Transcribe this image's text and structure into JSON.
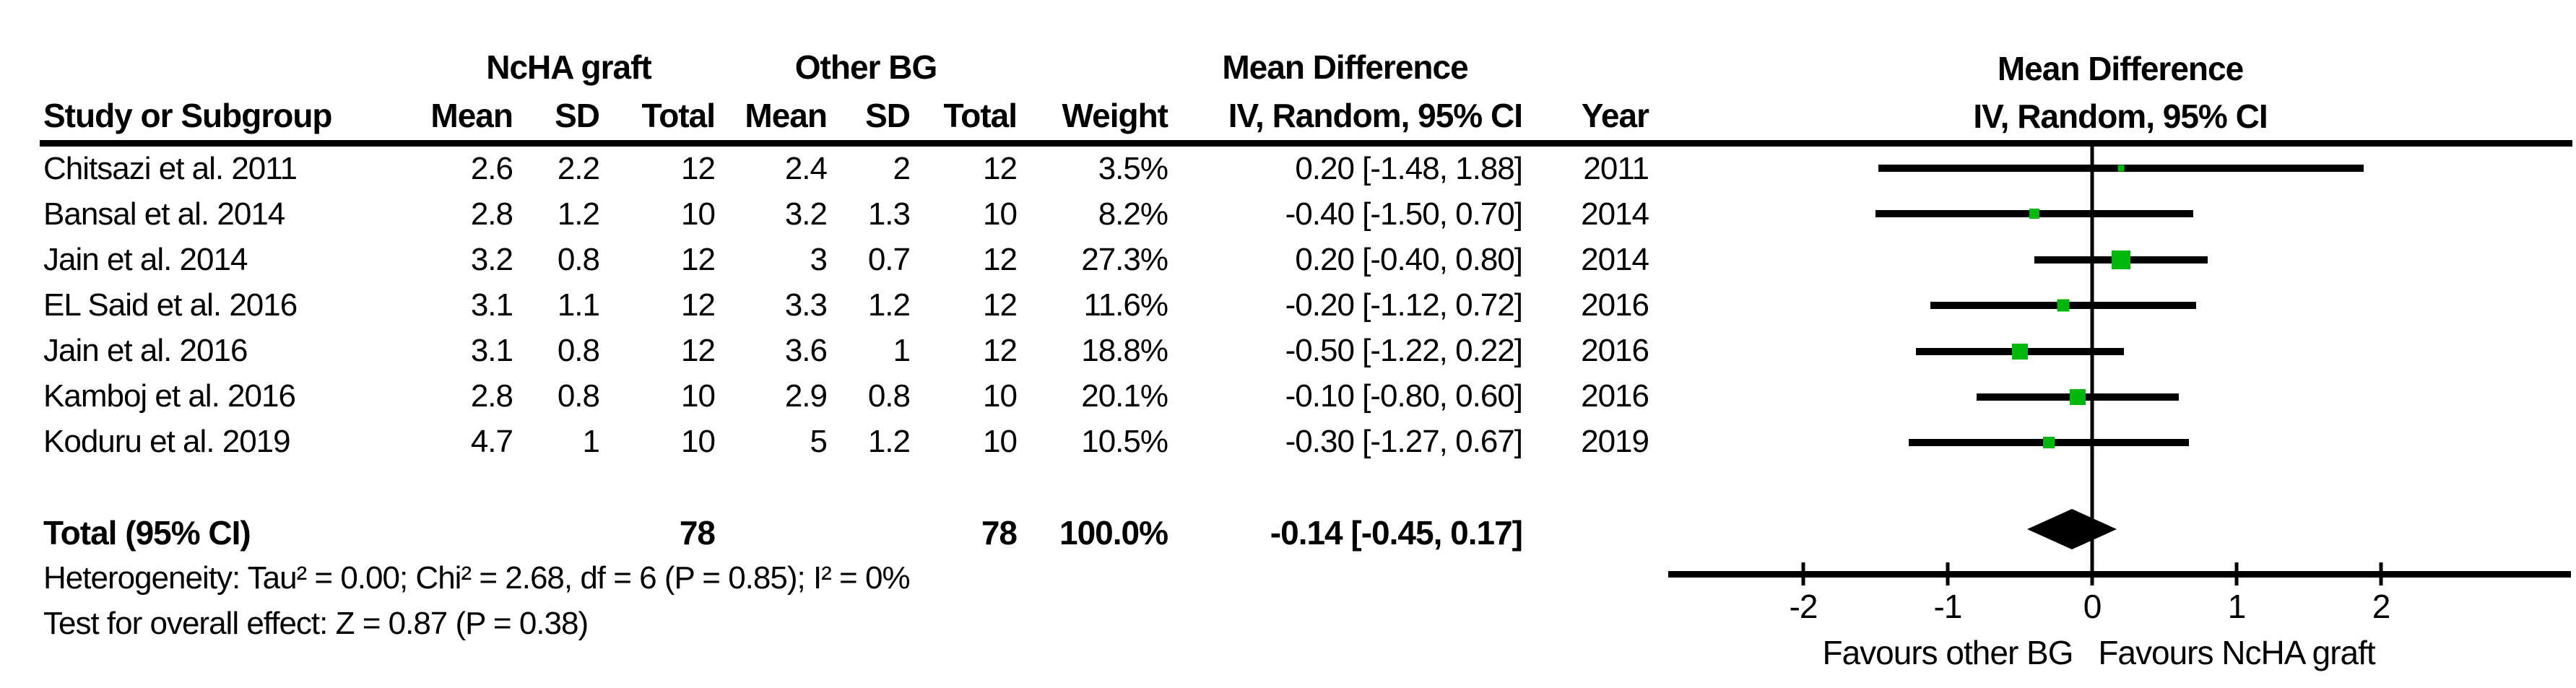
{
  "colors": {
    "marker_green": "#00b80c",
    "ink": "#000000",
    "background": "#ffffff"
  },
  "table_header": {
    "group_ncha": "NcHA graft",
    "group_other": "Other BG",
    "group_effect": "Mean Difference",
    "col_study": "Study or Subgroup",
    "col_mean": "Mean",
    "col_sd": "SD",
    "col_total": "Total",
    "col_weight": "Weight",
    "col_ci": "IV, Random, 95% CI",
    "col_year": "Year"
  },
  "plot_header": {
    "title": "Mean Difference",
    "subtitle": "IV, Random, 95% CI"
  },
  "studies": [
    {
      "name": "Chitsazi et al. 2011",
      "mean1": "2.6",
      "sd1": "2.2",
      "total1": "12",
      "mean2": "2.4",
      "sd2": "2",
      "total2": "12",
      "weight": "3.5%",
      "ci_text": "0.20 [-1.48, 1.88]",
      "year": "2011"
    },
    {
      "name": "Bansal et al. 2014",
      "mean1": "2.8",
      "sd1": "1.2",
      "total1": "10",
      "mean2": "3.2",
      "sd2": "1.3",
      "total2": "10",
      "weight": "8.2%",
      "ci_text": "-0.40 [-1.50, 0.70]",
      "year": "2014"
    },
    {
      "name": "Jain et al. 2014",
      "mean1": "3.2",
      "sd1": "0.8",
      "total1": "12",
      "mean2": "3",
      "sd2": "0.7",
      "total2": "12",
      "weight": "27.3%",
      "ci_text": "0.20 [-0.40, 0.80]",
      "year": "2014"
    },
    {
      "name": "EL Said et al. 2016",
      "mean1": "3.1",
      "sd1": "1.1",
      "total1": "12",
      "mean2": "3.3",
      "sd2": "1.2",
      "total2": "12",
      "weight": "11.6%",
      "ci_text": "-0.20 [-1.12, 0.72]",
      "year": "2016"
    },
    {
      "name": "Jain et al. 2016",
      "mean1": "3.1",
      "sd1": "0.8",
      "total1": "12",
      "mean2": "3.6",
      "sd2": "1",
      "total2": "12",
      "weight": "18.8%",
      "ci_text": "-0.50 [-1.22, 0.22]",
      "year": "2016"
    },
    {
      "name": "Kamboj et al. 2016",
      "mean1": "2.8",
      "sd1": "0.8",
      "total1": "10",
      "mean2": "2.9",
      "sd2": "0.8",
      "total2": "10",
      "weight": "20.1%",
      "ci_text": "-0.10 [-0.80, 0.60]",
      "year": "2016"
    },
    {
      "name": "Koduru et al. 2019",
      "mean1": "4.7",
      "sd1": "1",
      "total1": "10",
      "mean2": "5",
      "sd2": "1.2",
      "total2": "10",
      "weight": "10.5%",
      "ci_text": "-0.30 [-1.27, 0.67]",
      "year": "2019"
    }
  ],
  "total_row": {
    "label": "Total (95% CI)",
    "total1": "78",
    "total2": "78",
    "weight": "100.0%",
    "ci_text": "-0.14 [-0.45, 0.17]"
  },
  "footnotes": {
    "heterogeneity": "Heterogeneity: Tau² = 0.00; Chi² = 2.68, df = 6 (P = 0.85); I² = 0%",
    "overall_effect": "Test for overall effect: Z = 0.87 (P = 0.38)"
  },
  "chart_data": {
    "type": "forest",
    "effect_label": "Mean Difference",
    "method": "IV, Random, 95% CI",
    "studies": [
      {
        "label": "Chitsazi et al. 2011",
        "md": 0.2,
        "ci_low": -1.48,
        "ci_high": 1.88,
        "weight_pct": 3.5,
        "year": 2011
      },
      {
        "label": "Bansal et al. 2014",
        "md": -0.4,
        "ci_low": -1.5,
        "ci_high": 0.7,
        "weight_pct": 8.2,
        "year": 2014
      },
      {
        "label": "Jain et al. 2014",
        "md": 0.2,
        "ci_low": -0.4,
        "ci_high": 0.8,
        "weight_pct": 27.3,
        "year": 2014
      },
      {
        "label": "EL Said et al. 2016",
        "md": -0.2,
        "ci_low": -1.12,
        "ci_high": 0.72,
        "weight_pct": 11.6,
        "year": 2016
      },
      {
        "label": "Jain et al. 2016",
        "md": -0.5,
        "ci_low": -1.22,
        "ci_high": 0.22,
        "weight_pct": 18.8,
        "year": 2016
      },
      {
        "label": "Kamboj et al. 2016",
        "md": -0.1,
        "ci_low": -0.8,
        "ci_high": 0.6,
        "weight_pct": 20.1,
        "year": 2016
      },
      {
        "label": "Koduru et al. 2019",
        "md": -0.3,
        "ci_low": -1.27,
        "ci_high": 0.67,
        "weight_pct": 10.5,
        "year": 2019
      }
    ],
    "total": {
      "label": "Total (95% CI)",
      "md": -0.14,
      "ci_low": -0.45,
      "ci_high": 0.17,
      "weight_pct": 100.0
    },
    "axis": {
      "ticks": [
        -2,
        -1,
        0,
        1,
        2
      ],
      "xlim": [
        -2.95,
        3.3
      ],
      "favours_left": "Favours other BG",
      "favours_right": "Favours NcHA graft",
      "grid": false
    },
    "marker_color": "#00b80c",
    "summary_color": "#000000"
  }
}
